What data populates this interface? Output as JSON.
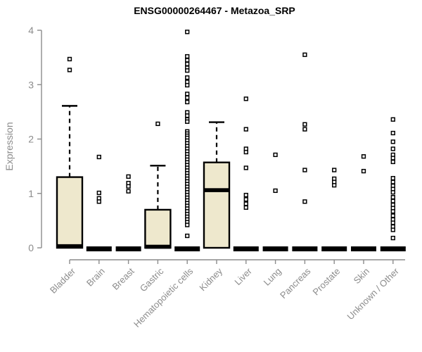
{
  "chart_data": {
    "type": "boxplot",
    "title": "ENSG00000264467 - Metazoa_SRP",
    "ylabel": "Expression",
    "xlabel": "",
    "ylim": [
      0,
      4
    ],
    "yticks": [
      0,
      1,
      2,
      3,
      4
    ],
    "grid": false,
    "legend": "none",
    "colors": {
      "box_fill": "#EEE8CD",
      "box_stroke": "#000000",
      "axis": "#8C8C8C",
      "tick_label": "#8C8C8C",
      "title": "#000000",
      "background": "#FFFFFF"
    },
    "categories": [
      "Bladder",
      "Brain",
      "Breast",
      "Gastric",
      "Hematopoietic cells",
      "Kidney",
      "Liver",
      "Lung",
      "Pancreas",
      "Prostate",
      "Skin",
      "Unknown / Other"
    ],
    "series": [
      {
        "category": "Bladder",
        "q1": 0,
        "median": 0.03,
        "q3": 1.3,
        "whisker_low": 0,
        "whisker_high": 2.61,
        "outliers": [
          3.47,
          3.27
        ]
      },
      {
        "category": "Brain",
        "q1": 0,
        "median": 0,
        "q3": 0,
        "whisker_low": 0,
        "whisker_high": 0,
        "outliers": [
          1.67,
          1.01,
          0.91,
          0.85
        ]
      },
      {
        "category": "Breast",
        "q1": 0,
        "median": 0,
        "q3": 0,
        "whisker_low": 0,
        "whisker_high": 0,
        "outliers": [
          1.31,
          1.19,
          1.13,
          1.04
        ]
      },
      {
        "category": "Gastric",
        "q1": 0,
        "median": 0.02,
        "q3": 0.7,
        "whisker_low": 0,
        "whisker_high": 1.51,
        "outliers": [
          2.28
        ]
      },
      {
        "category": "Hematopoietic cells",
        "q1": 0,
        "median": 0,
        "q3": 0,
        "whisker_low": 0,
        "whisker_high": 0,
        "outliers": [
          3.97,
          3.52,
          3.45,
          3.38,
          3.31,
          3.26,
          3.13,
          3.05,
          2.99,
          2.83,
          2.76,
          2.68,
          2.49,
          2.43,
          2.36,
          2.32,
          2.14,
          2.1,
          2.06,
          2.02,
          1.97,
          1.92,
          1.87,
          1.82,
          1.77,
          1.72,
          1.67,
          1.62,
          1.57,
          1.52,
          1.47,
          1.42,
          1.37,
          1.32,
          1.27,
          1.22,
          1.17,
          1.12,
          1.07,
          1.02,
          0.97,
          0.92,
          0.87,
          0.82,
          0.77,
          0.72,
          0.67,
          0.62,
          0.57,
          0.52,
          0.47,
          0.42,
          0.22
        ]
      },
      {
        "category": "Kidney",
        "q1": 0,
        "median": 1.06,
        "q3": 1.57,
        "whisker_low": 0,
        "whisker_high": 2.31,
        "outliers": []
      },
      {
        "category": "Liver",
        "q1": 0,
        "median": 0,
        "q3": 0,
        "whisker_low": 0,
        "whisker_high": 0,
        "outliers": [
          2.74,
          2.18,
          1.82,
          1.76,
          1.47,
          0.97,
          0.89,
          0.81,
          0.74
        ]
      },
      {
        "category": "Lung",
        "q1": 0,
        "median": 0,
        "q3": 0,
        "whisker_low": 0,
        "whisker_high": 0,
        "outliers": [
          1.71,
          1.05
        ]
      },
      {
        "category": "Pancreas",
        "q1": 0,
        "median": 0,
        "q3": 0,
        "whisker_low": 0,
        "whisker_high": 0,
        "outliers": [
          3.55,
          2.27,
          2.18,
          1.43,
          0.85
        ]
      },
      {
        "category": "Prostate",
        "q1": 0,
        "median": 0,
        "q3": 0,
        "whisker_low": 0,
        "whisker_high": 0,
        "outliers": [
          1.43,
          1.27,
          1.21,
          1.15
        ]
      },
      {
        "category": "Skin",
        "q1": 0,
        "median": 0,
        "q3": 0,
        "whisker_low": 0,
        "whisker_high": 0,
        "outliers": [
          1.68,
          1.41
        ]
      },
      {
        "category": "Unknown / Other",
        "q1": 0,
        "median": 0,
        "q3": 0,
        "whisker_low": 0,
        "whisker_high": 0,
        "outliers": [
          2.36,
          2.11,
          1.95,
          1.82,
          1.71,
          1.65,
          1.58,
          1.28,
          1.21,
          1.14,
          1.08,
          1.02,
          0.93,
          0.86,
          0.79,
          0.73,
          0.67,
          0.59,
          0.52,
          0.46,
          0.39,
          0.33,
          0.18
        ]
      }
    ]
  }
}
